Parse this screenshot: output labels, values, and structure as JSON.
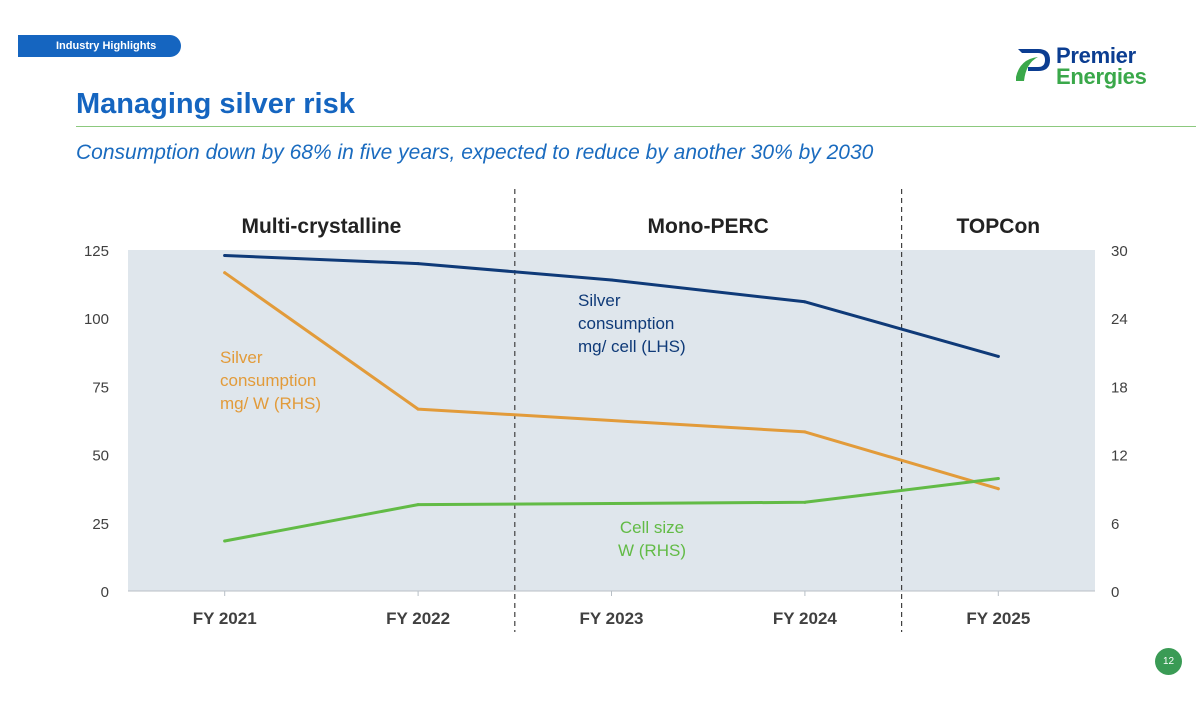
{
  "header": {
    "section_tag": "Industry Highlights",
    "logo_line1": "Premier",
    "logo_line2": "Energies",
    "title": "Managing silver risk",
    "subtitle": "Consumption down by 68% in five years, expected to reduce by another 30% by 2030"
  },
  "page_number": "12",
  "colors": {
    "brand_blue": "#1565c0",
    "brand_green": "#3aa84a",
    "plot_bg": "#dfe6ec",
    "navy_series": "#0f3a78",
    "orange_series": "#e29b3a",
    "green_series": "#62bb46"
  },
  "chart_data": {
    "type": "line",
    "categories": [
      "FY 2021",
      "FY 2022",
      "FY 2023",
      "FY 2024",
      "FY 2025"
    ],
    "technology_phases": [
      {
        "label": "Multi-crystalline",
        "from": "FY 2021",
        "to": "FY 2022"
      },
      {
        "label": "Mono-PERC",
        "from": "FY 2023",
        "to": "FY 2024"
      },
      {
        "label": "TOPCon",
        "from": "FY 2025",
        "to": "FY 2025"
      }
    ],
    "axes": {
      "left": {
        "ticks": [
          "0",
          "25",
          "50",
          "75",
          "100",
          "125"
        ],
        "ylim": [
          0,
          125
        ]
      },
      "right": {
        "ticks": [
          "0",
          "6",
          "12",
          "18",
          "24",
          "30"
        ],
        "ylim": [
          0,
          30
        ]
      }
    },
    "series": [
      {
        "name": "Silver consumption mg/ cell (LHS)",
        "label_lines": [
          "Silver",
          "consumption",
          "mg/ cell (LHS)"
        ],
        "axis": "left",
        "color": "#0f3a78",
        "values": [
          123,
          120,
          114,
          106,
          86
        ]
      },
      {
        "name": "Silver consumption mg/ W (RHS)",
        "label_lines": [
          "Silver",
          "consumption",
          "mg/ W (RHS)"
        ],
        "axis": "right",
        "color": "#e29b3a",
        "values": [
          28,
          16,
          15,
          14,
          9
        ]
      },
      {
        "name": "Cell size W (RHS)",
        "label_lines": [
          "Cell size",
          "W (RHS)"
        ],
        "axis": "right",
        "color": "#62bb46",
        "values": [
          4.4,
          7.6,
          7.7,
          7.8,
          9.9
        ]
      }
    ]
  }
}
